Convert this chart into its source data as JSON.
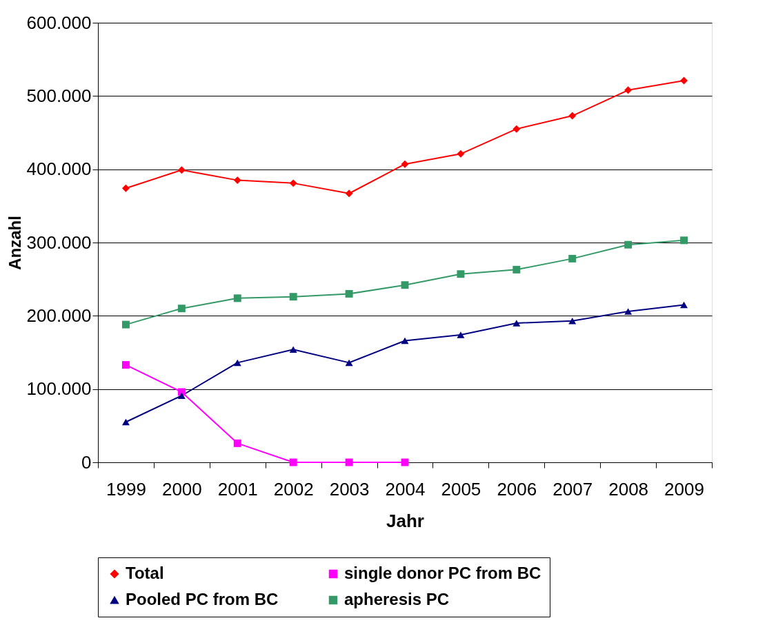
{
  "chart_data": {
    "type": "line",
    "xlabel": "Jahr",
    "ylabel": "Anzahl",
    "categories": [
      "1999",
      "2000",
      "2001",
      "2002",
      "2003",
      "2004",
      "2005",
      "2006",
      "2007",
      "2008",
      "2009"
    ],
    "series": [
      {
        "name": "Total",
        "color": "#ff0000",
        "marker": "diamond",
        "values": [
          374000,
          399000,
          385000,
          381000,
          367000,
          407000,
          421000,
          455000,
          473000,
          508000,
          521000
        ]
      },
      {
        "name": "single donor PC from BC",
        "color": "#ff00ff",
        "marker": "square",
        "values": [
          133000,
          96000,
          26000,
          0,
          0,
          0,
          null,
          null,
          null,
          null,
          null
        ]
      },
      {
        "name": "Pooled PC from  BC",
        "color": "#000080",
        "marker": "triangle",
        "values": [
          55000,
          91000,
          136000,
          154000,
          136000,
          166000,
          174000,
          190000,
          193000,
          206000,
          215000
        ]
      },
      {
        "name": "apheresis PC",
        "color": "#339966",
        "marker": "square",
        "values": [
          188000,
          210000,
          224000,
          226000,
          230000,
          242000,
          257000,
          263000,
          278000,
          297000,
          303000
        ]
      }
    ],
    "ylim": [
      0,
      600000
    ],
    "yticks": [
      0,
      {
        "value": 100000,
        "label": "100.000"
      },
      {
        "value": 200000,
        "label": "200.000"
      },
      {
        "value": 300000,
        "label": "300.000"
      },
      {
        "value": 400000,
        "label": "400.000"
      },
      {
        "value": 500000,
        "label": "500.000"
      },
      {
        "value": 600000,
        "label": "600.000"
      }
    ],
    "grid": "y",
    "legend": "bottom"
  }
}
